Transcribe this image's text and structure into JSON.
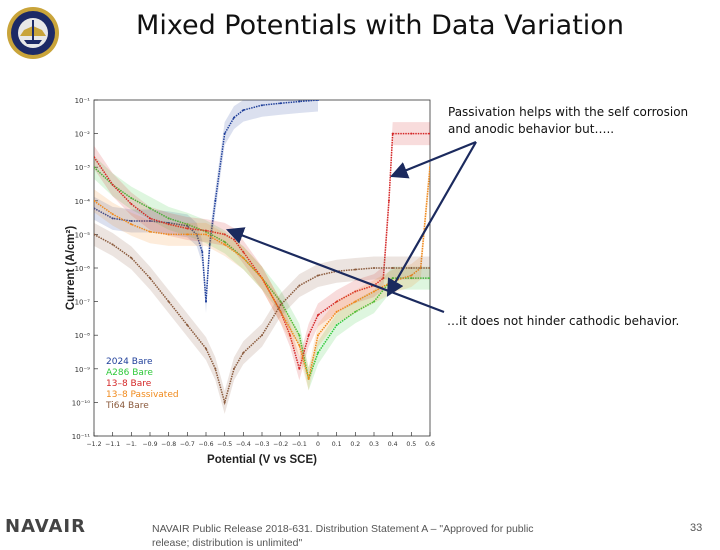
{
  "slide": {
    "title": "Mixed Potentials with Data Variation",
    "annotation_top": "Passivation helps with the self corrosion and anodic behavior but…..",
    "annotation_bottom": "…it does not hinder cathodic behavior.",
    "footer_logo": "NAVAIR",
    "footer_text": "NAVAIR Public Release 2018-631. Distribution Statement A – \"Approved for public release; distribution is unlimited\"",
    "page_number": "33"
  },
  "chart_data": {
    "type": "line",
    "xlabel": "Potential (V vs SCE)",
    "ylabel": "Current (A/cm²)",
    "y_scale": "log",
    "xlim": [
      -1.2,
      0.6
    ],
    "ylim": [
      1e-11,
      0.1
    ],
    "x_ticks": [
      "−1.2",
      "−1.1",
      "−1.",
      "−0.9",
      "−0.8",
      "−0.7",
      "−0.6",
      "−0.5",
      "−0.4",
      "−0.3",
      "−0.2",
      "−0.1",
      "0",
      "0.1",
      "0.2",
      "0.3",
      "0.4",
      "0.5",
      "0.6"
    ],
    "y_ticks": [
      "10⁻¹",
      "10⁻²",
      "10⁻³",
      "10⁻⁴",
      "10⁻⁵",
      "10⁻⁶",
      "10⁻⁷",
      "10⁻⁸",
      "10⁻⁹",
      "10⁻¹⁰",
      "10⁻¹¹"
    ],
    "legend_placement": "bottom-left",
    "series": [
      {
        "name": "2024 Bare",
        "color": "#1f3f9a",
        "x": [
          -1.2,
          -1.1,
          -1.0,
          -0.9,
          -0.8,
          -0.7,
          -0.65,
          -0.62,
          -0.6,
          -0.58,
          -0.55,
          -0.5,
          -0.45,
          -0.4,
          -0.3,
          -0.2,
          -0.1,
          0.0
        ],
        "y": [
          6e-05,
          3e-05,
          2.5e-05,
          2.5e-05,
          2.2e-05,
          1.8e-05,
          1e-05,
          3e-06,
          1e-07,
          5e-06,
          0.0001,
          0.01,
          0.03,
          0.05,
          0.07,
          0.08,
          0.09,
          0.1
        ]
      },
      {
        "name": "A286 Bare",
        "color": "#2fc93a",
        "x": [
          -1.2,
          -1.1,
          -1.0,
          -0.9,
          -0.8,
          -0.7,
          -0.6,
          -0.5,
          -0.4,
          -0.3,
          -0.2,
          -0.1,
          -0.05,
          0.0,
          0.1,
          0.2,
          0.3,
          0.4,
          0.5,
          0.6
        ],
        "y": [
          0.001,
          0.0003,
          0.00012,
          6e-05,
          3e-05,
          2e-05,
          1.2e-05,
          6e-06,
          2e-06,
          5e-07,
          1e-07,
          1e-08,
          5e-10,
          3e-09,
          2e-08,
          5e-08,
          1e-07,
          5e-07,
          5e-07,
          5e-07
        ]
      },
      {
        "name": "13–8 Bare",
        "color": "#d42727",
        "x": [
          -1.2,
          -1.1,
          -1.0,
          -0.9,
          -0.8,
          -0.7,
          -0.6,
          -0.5,
          -0.45,
          -0.4,
          -0.3,
          -0.2,
          -0.15,
          -0.1,
          -0.05,
          0.0,
          0.1,
          0.2,
          0.3,
          0.35,
          0.38,
          0.4,
          0.5,
          0.6
        ],
        "y": [
          0.002,
          0.0003,
          8e-05,
          3e-05,
          2e-05,
          1.5e-05,
          1.3e-05,
          1e-05,
          7e-06,
          3e-06,
          5e-07,
          5e-08,
          1e-08,
          1e-09,
          1e-08,
          4e-08,
          1e-07,
          2e-07,
          3e-07,
          5e-07,
          0.0001,
          0.01,
          0.01,
          0.01
        ]
      },
      {
        "name": "13–8 Passivated",
        "color": "#f08a1c",
        "x": [
          -1.2,
          -1.1,
          -1.0,
          -0.9,
          -0.8,
          -0.7,
          -0.6,
          -0.5,
          -0.4,
          -0.3,
          -0.2,
          -0.1,
          -0.05,
          0.0,
          0.1,
          0.2,
          0.3,
          0.4,
          0.5,
          0.55,
          0.6
        ],
        "y": [
          0.0001,
          4e-05,
          2e-05,
          1.2e-05,
          1e-05,
          1e-05,
          1e-05,
          5e-06,
          2e-06,
          5e-07,
          5e-08,
          5e-09,
          5e-10,
          1e-08,
          5e-08,
          1e-07,
          2e-07,
          4e-07,
          6e-07,
          1e-06,
          0.001
        ]
      },
      {
        "name": "Ti64 Bare",
        "color": "#8a5a3c",
        "x": [
          -1.2,
          -1.1,
          -1.0,
          -0.9,
          -0.8,
          -0.7,
          -0.6,
          -0.55,
          -0.5,
          -0.45,
          -0.4,
          -0.3,
          -0.2,
          -0.1,
          0.0,
          0.1,
          0.2,
          0.3,
          0.4,
          0.5,
          0.6
        ],
        "y": [
          1e-05,
          5e-06,
          2e-06,
          5e-07,
          1e-07,
          2e-08,
          4e-09,
          1e-09,
          1e-10,
          1e-09,
          3e-09,
          1e-08,
          8e-08,
          3e-07,
          6e-07,
          8e-07,
          9e-07,
          1e-06,
          1e-06,
          1e-06,
          1e-06
        ]
      }
    ]
  }
}
